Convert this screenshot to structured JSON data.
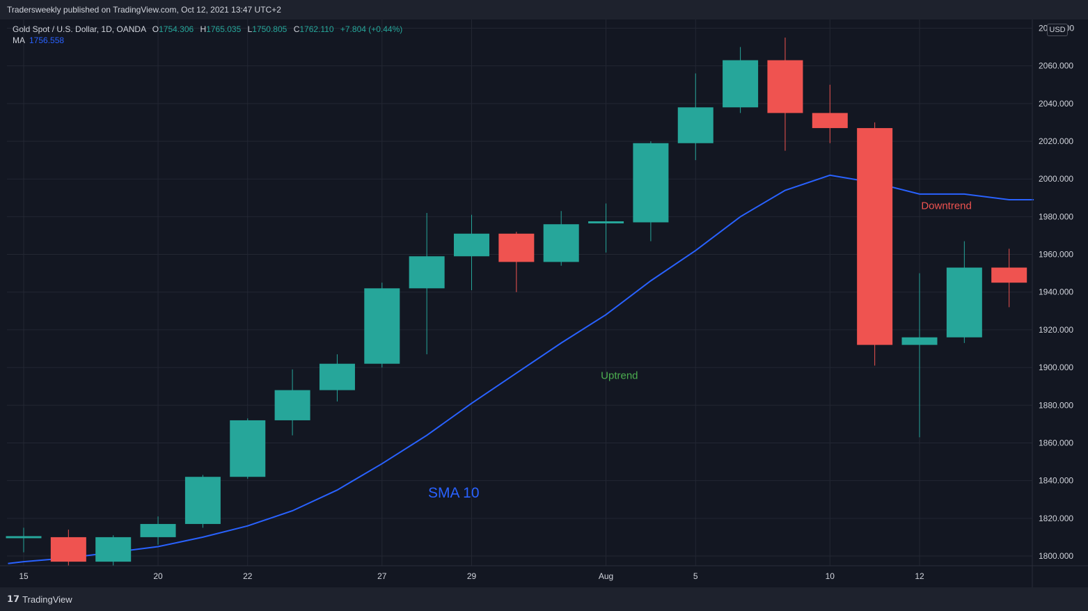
{
  "header": {
    "published": "Tradersweekly published on TradingView.com, Oct 12, 2021 13:47 UTC+2"
  },
  "legend": {
    "symbol": "Gold Spot / U.S. Dollar, 1D, OANDA",
    "open_label": "O",
    "open": "1754.306",
    "high_label": "H",
    "high": "1765.035",
    "low_label": "L",
    "low": "1750.805",
    "close_label": "C",
    "close": "1762.110",
    "change": "+7.804 (+0.44%)",
    "ma_label": "MA",
    "ma_value": "1756.558"
  },
  "currency": "USD",
  "footer": {
    "brand": "TradingView",
    "brand_icon": "tradingview-logo-icon"
  },
  "colors": {
    "background": "#131722",
    "up": "#26a69a",
    "down": "#ef5350",
    "ma": "#2962ff",
    "grid": "#232733",
    "annotation_up": "#4caf50",
    "annotation_down": "#ef5350"
  },
  "chart_data": {
    "type": "candlestick",
    "title": "Gold Spot / U.S. Dollar, 1D, OANDA",
    "ylim": [
      1793,
      2087
    ],
    "y_ticks": [
      1800,
      1820,
      1840,
      1860,
      1880,
      1900,
      1920,
      1940,
      1960,
      1980,
      2000,
      2020,
      2040,
      2060,
      2080
    ],
    "y_tick_labels": [
      "1800.000",
      "1820.000",
      "1840.000",
      "1860.000",
      "1880.000",
      "1900.000",
      "1920.000",
      "1940.000",
      "1960.000",
      "1980.000",
      "2000.000",
      "2020.000",
      "2040.000",
      "2060.000",
      "20□□.000"
    ],
    "x_tick_labels": [
      {
        "bar": 0,
        "label": "15"
      },
      {
        "bar": 3,
        "label": "20"
      },
      {
        "bar": 5,
        "label": "22"
      },
      {
        "bar": 8,
        "label": "27"
      },
      {
        "bar": 10,
        "label": "29"
      },
      {
        "bar": 13,
        "label": "Aug"
      },
      {
        "bar": 15,
        "label": "5"
      },
      {
        "bar": 18,
        "label": "10"
      },
      {
        "bar": 20,
        "label": "12"
      }
    ],
    "candles": [
      {
        "o": 1809,
        "h": 1815,
        "l": 1802,
        "c": 1810
      },
      {
        "o": 1810,
        "h": 1814,
        "l": 1795,
        "c": 1797
      },
      {
        "o": 1797,
        "h": 1811,
        "l": 1795,
        "c": 1810
      },
      {
        "o": 1810,
        "h": 1821,
        "l": 1806,
        "c": 1817
      },
      {
        "o": 1817,
        "h": 1843,
        "l": 1815,
        "c": 1842
      },
      {
        "o": 1842,
        "h": 1873,
        "l": 1841,
        "c": 1872
      },
      {
        "o": 1872,
        "h": 1899,
        "l": 1864,
        "c": 1888
      },
      {
        "o": 1888,
        "h": 1907,
        "l": 1882,
        "c": 1902
      },
      {
        "o": 1902,
        "h": 1945,
        "l": 1900,
        "c": 1942
      },
      {
        "o": 1942,
        "h": 1982,
        "l": 1907,
        "c": 1959
      },
      {
        "o": 1959,
        "h": 1981,
        "l": 1941,
        "c": 1971
      },
      {
        "o": 1971,
        "h": 1972,
        "l": 1940,
        "c": 1956
      },
      {
        "o": 1956,
        "h": 1983,
        "l": 1954,
        "c": 1976
      },
      {
        "o": 1976,
        "h": 1987,
        "l": 1961,
        "c": 1977
      },
      {
        "o": 1977,
        "h": 2020,
        "l": 1967,
        "c": 2019
      },
      {
        "o": 2019,
        "h": 2056,
        "l": 2010,
        "c": 2038
      },
      {
        "o": 2038,
        "h": 2070,
        "l": 2035,
        "c": 2063
      },
      {
        "o": 2063,
        "h": 2075,
        "l": 2015,
        "c": 2035
      },
      {
        "o": 2035,
        "h": 2050,
        "l": 2019,
        "c": 2027
      },
      {
        "o": 2027,
        "h": 2030,
        "l": 1901,
        "c": 1912
      },
      {
        "o": 1912,
        "h": 1950,
        "l": 1863,
        "c": 1916
      },
      {
        "o": 1916,
        "h": 1967,
        "l": 1913,
        "c": 1953
      },
      {
        "o": 1953,
        "h": 1963,
        "l": 1932,
        "c": 1945
      }
    ],
    "sma_10": [
      {
        "bar": -0.35,
        "v": 1796
      },
      {
        "bar": 0,
        "v": 1797
      },
      {
        "bar": 1,
        "v": 1799
      },
      {
        "bar": 2,
        "v": 1802
      },
      {
        "bar": 3,
        "v": 1805
      },
      {
        "bar": 4,
        "v": 1810
      },
      {
        "bar": 5,
        "v": 1816
      },
      {
        "bar": 6,
        "v": 1824
      },
      {
        "bar": 7,
        "v": 1835
      },
      {
        "bar": 8,
        "v": 1849
      },
      {
        "bar": 9,
        "v": 1864
      },
      {
        "bar": 10,
        "v": 1881
      },
      {
        "bar": 11,
        "v": 1897
      },
      {
        "bar": 12,
        "v": 1913
      },
      {
        "bar": 13,
        "v": 1928
      },
      {
        "bar": 14,
        "v": 1946
      },
      {
        "bar": 15,
        "v": 1962
      },
      {
        "bar": 16,
        "v": 1980
      },
      {
        "bar": 17,
        "v": 1994
      },
      {
        "bar": 18,
        "v": 2002
      },
      {
        "bar": 19,
        "v": 1998
      },
      {
        "bar": 20,
        "v": 1992
      },
      {
        "bar": 21,
        "v": 1992
      },
      {
        "bar": 22,
        "v": 1989
      },
      {
        "bar": 22.55,
        "v": 1989
      }
    ],
    "annotations": [
      {
        "text": "SMA 10",
        "bar": 9.6,
        "v": 1831,
        "color": "#2962ff",
        "size": "large"
      },
      {
        "text": "Uptrend",
        "bar": 13.3,
        "v": 1894,
        "color": "#4caf50",
        "size": "normal"
      },
      {
        "text": "Downtrend",
        "bar": 20.6,
        "v": 1984,
        "color": "#ef5350",
        "size": "normal"
      }
    ],
    "grid": true
  }
}
